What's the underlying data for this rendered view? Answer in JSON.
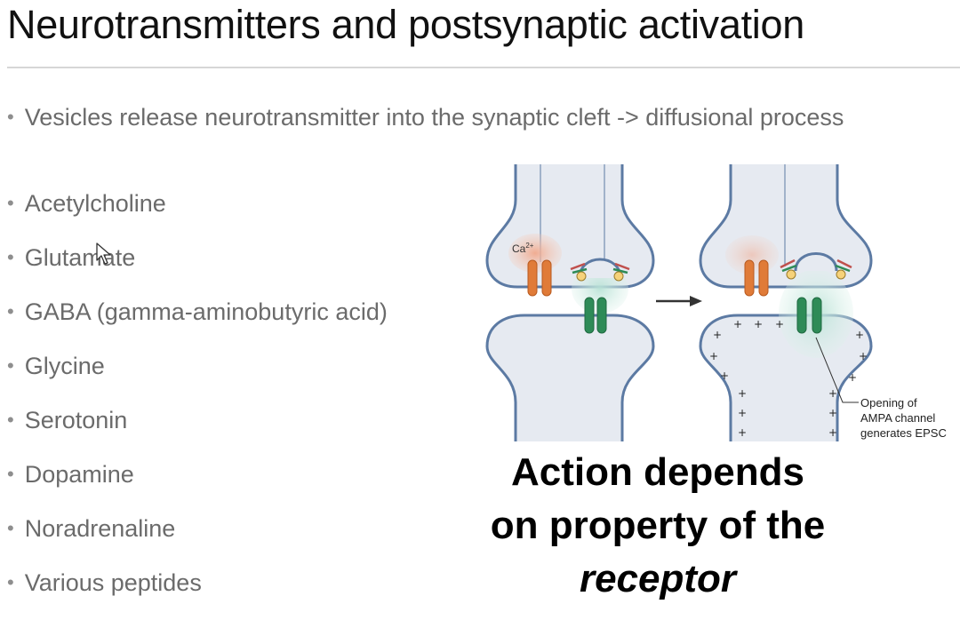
{
  "slide": {
    "title": "Neurotransmitters and postsynaptic activation",
    "lead_bullet": "Vesicles release neurotransmitter into the synaptic cleft -> diffusional process",
    "items": [
      "Acetylcholine",
      "Glutamate",
      "GABA (gamma-aminobutyric acid)",
      "Glycine",
      "Serotonin",
      "Dopamine",
      "Noradrenaline",
      "Various peptides"
    ],
    "bullet_glyph": "•"
  },
  "diagram": {
    "ion_label": "Ca",
    "ion_charge": "2+",
    "annotation_lines": [
      "Opening of",
      "AMPA channel",
      "generates EPSC"
    ],
    "charge_sign": "+"
  },
  "callout": {
    "line1": "Action depends",
    "line2": "on property of the",
    "line3": "receptor"
  },
  "colors": {
    "membrane": "#5c7aa3",
    "cell_fill": "#e6eaf1",
    "ca_channel": "#e07b38",
    "ampa_channel": "#2e8b57",
    "calcium_cloud": "#f3b9a3",
    "nt_cloud": "#cce9e0"
  },
  "icons": [
    "arrow-right-icon",
    "mouse-cursor-icon"
  ]
}
